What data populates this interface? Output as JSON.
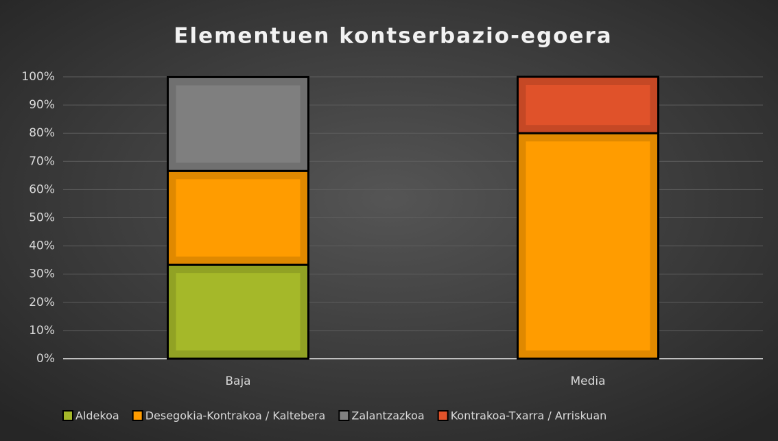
{
  "chart_data": {
    "type": "stacked_bar",
    "title": "Elementuen kontserbazio-egoera",
    "categories": [
      "Baja",
      "Media"
    ],
    "series": [
      {
        "name": "Aldekoa",
        "color": "#a5b829",
        "values": [
          33.3,
          0
        ]
      },
      {
        "name": "Desegokia-Kontrakoa / Kaltebera",
        "color": "#ff9c00",
        "values": [
          33.3,
          80
        ]
      },
      {
        "name": "Zalantzazkoa",
        "color": "#7f7f7f",
        "values": [
          33.3,
          0
        ]
      },
      {
        "name": "Kontrakoa-Txarra / Arriskuan",
        "color": "#e0522a",
        "values": [
          0,
          20
        ]
      }
    ],
    "ylim": [
      0,
      100
    ],
    "yticks": [
      {
        "value": 0,
        "label": "0%"
      },
      {
        "value": 10,
        "label": "10%"
      },
      {
        "value": 20,
        "label": "20%"
      },
      {
        "value": 30,
        "label": "30%"
      },
      {
        "value": 40,
        "label": "40%"
      },
      {
        "value": 50,
        "label": "50%"
      },
      {
        "value": 60,
        "label": "60%"
      },
      {
        "value": 70,
        "label": "70%"
      },
      {
        "value": 80,
        "label": "80%"
      },
      {
        "value": 90,
        "label": "90%"
      },
      {
        "value": 100,
        "label": "100%"
      }
    ],
    "grid": true,
    "legend": "bottom"
  }
}
